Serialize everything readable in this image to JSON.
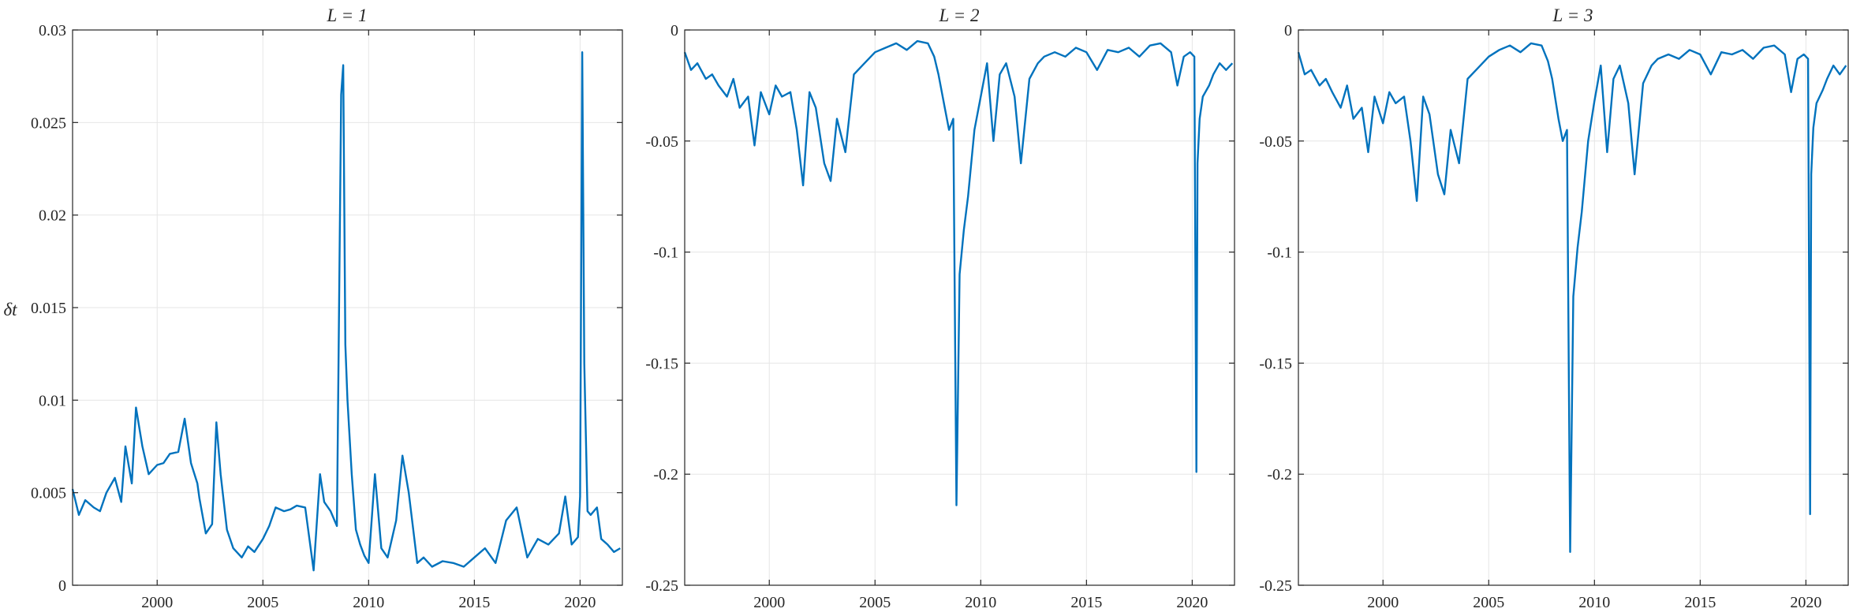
{
  "chart_data": [
    {
      "type": "line",
      "title": "L = 1",
      "xlabel": "",
      "ylabel": "δt",
      "xlim": [
        1996.0,
        2022.0
      ],
      "ylim": [
        0,
        0.03
      ],
      "xticks": [
        2000,
        2005,
        2010,
        2015,
        2020
      ],
      "yticks": [
        0,
        0.005,
        0.01,
        0.015,
        0.02,
        0.025,
        0.03
      ],
      "ytick_labels": [
        "0",
        "0.005",
        "0.01",
        "0.015",
        "0.02",
        "0.025",
        "0.03"
      ],
      "grid": true,
      "color": "#0072BD",
      "series": [
        {
          "x": [
            1996.0,
            1996.3,
            1996.6,
            1997.0,
            1997.3,
            1997.6,
            1998.0,
            1998.3,
            1998.5,
            1998.8,
            1999.0,
            1999.3,
            1999.6,
            2000.0,
            2000.3,
            2000.6,
            2001.0,
            2001.3,
            2001.6,
            2001.9,
            2002.0,
            2002.3,
            2002.6,
            2002.8,
            2003.0,
            2003.3,
            2003.6,
            2004.0,
            2004.3,
            2004.6,
            2005.0,
            2005.3,
            2005.6,
            2006.0,
            2006.3,
            2006.6,
            2007.0,
            2007.4,
            2007.7,
            2007.9,
            2008.2,
            2008.5,
            2008.7,
            2008.8,
            2008.9,
            2009.0,
            2009.2,
            2009.4,
            2009.6,
            2009.8,
            2010.0,
            2010.3,
            2010.6,
            2010.9,
            2011.3,
            2011.6,
            2011.9,
            2012.3,
            2012.6,
            2013.0,
            2013.5,
            2014.0,
            2014.5,
            2015.0,
            2015.5,
            2016.0,
            2016.5,
            2017.0,
            2017.5,
            2018.0,
            2018.5,
            2019.0,
            2019.3,
            2019.6,
            2019.9,
            2020.0,
            2020.1,
            2020.2,
            2020.35,
            2020.5,
            2020.8,
            2021.0,
            2021.3,
            2021.6,
            2021.9
          ],
          "values": [
            0.0052,
            0.0038,
            0.0046,
            0.0042,
            0.004,
            0.005,
            0.0058,
            0.0045,
            0.0075,
            0.0055,
            0.0096,
            0.0075,
            0.006,
            0.0065,
            0.0066,
            0.0071,
            0.0072,
            0.009,
            0.0066,
            0.0055,
            0.0047,
            0.0028,
            0.0033,
            0.0088,
            0.006,
            0.003,
            0.002,
            0.0015,
            0.0021,
            0.0018,
            0.0025,
            0.0032,
            0.0042,
            0.004,
            0.0041,
            0.0043,
            0.0042,
            0.0008,
            0.006,
            0.0045,
            0.004,
            0.0032,
            0.0265,
            0.0281,
            0.013,
            0.01,
            0.006,
            0.003,
            0.0022,
            0.0016,
            0.0012,
            0.006,
            0.002,
            0.0015,
            0.0035,
            0.007,
            0.005,
            0.0012,
            0.0015,
            0.001,
            0.0013,
            0.0012,
            0.001,
            0.0015,
            0.002,
            0.0012,
            0.0035,
            0.0042,
            0.0015,
            0.0025,
            0.0022,
            0.0028,
            0.0048,
            0.0022,
            0.0026,
            0.0048,
            0.0288,
            0.012,
            0.004,
            0.0038,
            0.0042,
            0.0025,
            0.0022,
            0.0018,
            0.002
          ]
        }
      ]
    },
    {
      "type": "line",
      "title": "L = 2",
      "xlabel": "",
      "ylabel": "",
      "xlim": [
        1996.0,
        2022.0
      ],
      "ylim": [
        -0.25,
        0
      ],
      "xticks": [
        2000,
        2005,
        2010,
        2015,
        2020
      ],
      "yticks": [
        -0.25,
        -0.2,
        -0.15,
        -0.1,
        -0.05,
        0
      ],
      "ytick_labels": [
        "-0.25",
        "-0.2",
        "-0.15",
        "-0.1",
        "-0.05",
        "0"
      ],
      "grid": true,
      "color": "#0072BD",
      "series": [
        {
          "x": [
            1996.0,
            1996.3,
            1996.6,
            1997.0,
            1997.3,
            1997.6,
            1998.0,
            1998.3,
            1998.6,
            1999.0,
            1999.3,
            1999.6,
            2000.0,
            2000.3,
            2000.6,
            2001.0,
            2001.3,
            2001.6,
            2001.9,
            2002.2,
            2002.6,
            2002.9,
            2003.2,
            2003.6,
            2004.0,
            2004.5,
            2005.0,
            2005.5,
            2006.0,
            2006.5,
            2007.0,
            2007.5,
            2007.8,
            2008.0,
            2008.3,
            2008.5,
            2008.7,
            2008.85,
            2009.0,
            2009.2,
            2009.4,
            2009.7,
            2010.0,
            2010.3,
            2010.6,
            2010.9,
            2011.2,
            2011.6,
            2011.9,
            2012.3,
            2012.7,
            2013.0,
            2013.5,
            2014.0,
            2014.5,
            2015.0,
            2015.5,
            2016.0,
            2016.5,
            2017.0,
            2017.5,
            2018.0,
            2018.5,
            2019.0,
            2019.3,
            2019.6,
            2019.9,
            2020.1,
            2020.2,
            2020.25,
            2020.35,
            2020.5,
            2020.8,
            2021.0,
            2021.3,
            2021.6,
            2021.9
          ],
          "values": [
            -0.01,
            -0.018,
            -0.015,
            -0.022,
            -0.02,
            -0.025,
            -0.03,
            -0.022,
            -0.035,
            -0.03,
            -0.052,
            -0.028,
            -0.038,
            -0.025,
            -0.03,
            -0.028,
            -0.045,
            -0.07,
            -0.028,
            -0.035,
            -0.06,
            -0.068,
            -0.04,
            -0.055,
            -0.02,
            -0.015,
            -0.01,
            -0.008,
            -0.006,
            -0.009,
            -0.005,
            -0.006,
            -0.012,
            -0.02,
            -0.035,
            -0.045,
            -0.04,
            -0.214,
            -0.11,
            -0.09,
            -0.075,
            -0.045,
            -0.03,
            -0.015,
            -0.05,
            -0.02,
            -0.015,
            -0.03,
            -0.06,
            -0.022,
            -0.015,
            -0.012,
            -0.01,
            -0.012,
            -0.008,
            -0.01,
            -0.018,
            -0.009,
            -0.01,
            -0.008,
            -0.012,
            -0.007,
            -0.006,
            -0.01,
            -0.025,
            -0.012,
            -0.01,
            -0.012,
            -0.199,
            -0.06,
            -0.04,
            -0.03,
            -0.025,
            -0.02,
            -0.015,
            -0.018,
            -0.015
          ]
        }
      ]
    },
    {
      "type": "line",
      "title": "L = 3",
      "xlabel": "",
      "ylabel": "",
      "xlim": [
        1996.0,
        2022.0
      ],
      "ylim": [
        -0.25,
        0
      ],
      "xticks": [
        2000,
        2005,
        2010,
        2015,
        2020
      ],
      "yticks": [
        -0.25,
        -0.2,
        -0.15,
        -0.1,
        -0.05,
        0
      ],
      "ytick_labels": [
        "-0.25",
        "-0.2",
        "-0.15",
        "-0.1",
        "-0.05",
        "0"
      ],
      "grid": true,
      "color": "#0072BD",
      "series": [
        {
          "x": [
            1996.0,
            1996.3,
            1996.6,
            1997.0,
            1997.3,
            1997.6,
            1998.0,
            1998.3,
            1998.6,
            1999.0,
            1999.3,
            1999.6,
            2000.0,
            2000.3,
            2000.6,
            2001.0,
            2001.3,
            2001.6,
            2001.9,
            2002.2,
            2002.6,
            2002.9,
            2003.2,
            2003.6,
            2004.0,
            2004.5,
            2005.0,
            2005.5,
            2006.0,
            2006.5,
            2007.0,
            2007.5,
            2007.8,
            2008.0,
            2008.3,
            2008.5,
            2008.7,
            2008.85,
            2009.0,
            2009.2,
            2009.4,
            2009.7,
            2010.0,
            2010.3,
            2010.6,
            2010.9,
            2011.2,
            2011.6,
            2011.9,
            2012.3,
            2012.7,
            2013.0,
            2013.5,
            2014.0,
            2014.5,
            2015.0,
            2015.5,
            2016.0,
            2016.5,
            2017.0,
            2017.5,
            2018.0,
            2018.5,
            2019.0,
            2019.3,
            2019.6,
            2019.9,
            2020.1,
            2020.2,
            2020.25,
            2020.35,
            2020.5,
            2020.8,
            2021.0,
            2021.3,
            2021.6,
            2021.9
          ],
          "values": [
            -0.01,
            -0.02,
            -0.018,
            -0.025,
            -0.022,
            -0.028,
            -0.035,
            -0.025,
            -0.04,
            -0.035,
            -0.055,
            -0.03,
            -0.042,
            -0.028,
            -0.033,
            -0.03,
            -0.05,
            -0.077,
            -0.03,
            -0.038,
            -0.065,
            -0.074,
            -0.045,
            -0.06,
            -0.022,
            -0.017,
            -0.012,
            -0.009,
            -0.007,
            -0.01,
            -0.006,
            -0.007,
            -0.014,
            -0.022,
            -0.04,
            -0.05,
            -0.045,
            -0.235,
            -0.12,
            -0.098,
            -0.082,
            -0.05,
            -0.032,
            -0.016,
            -0.055,
            -0.022,
            -0.016,
            -0.033,
            -0.065,
            -0.024,
            -0.016,
            -0.013,
            -0.011,
            -0.013,
            -0.009,
            -0.011,
            -0.02,
            -0.01,
            -0.011,
            -0.009,
            -0.013,
            -0.008,
            -0.007,
            -0.011,
            -0.028,
            -0.013,
            -0.011,
            -0.013,
            -0.218,
            -0.065,
            -0.044,
            -0.033,
            -0.027,
            -0.022,
            -0.016,
            -0.02,
            -0.016
          ]
        }
      ]
    }
  ]
}
